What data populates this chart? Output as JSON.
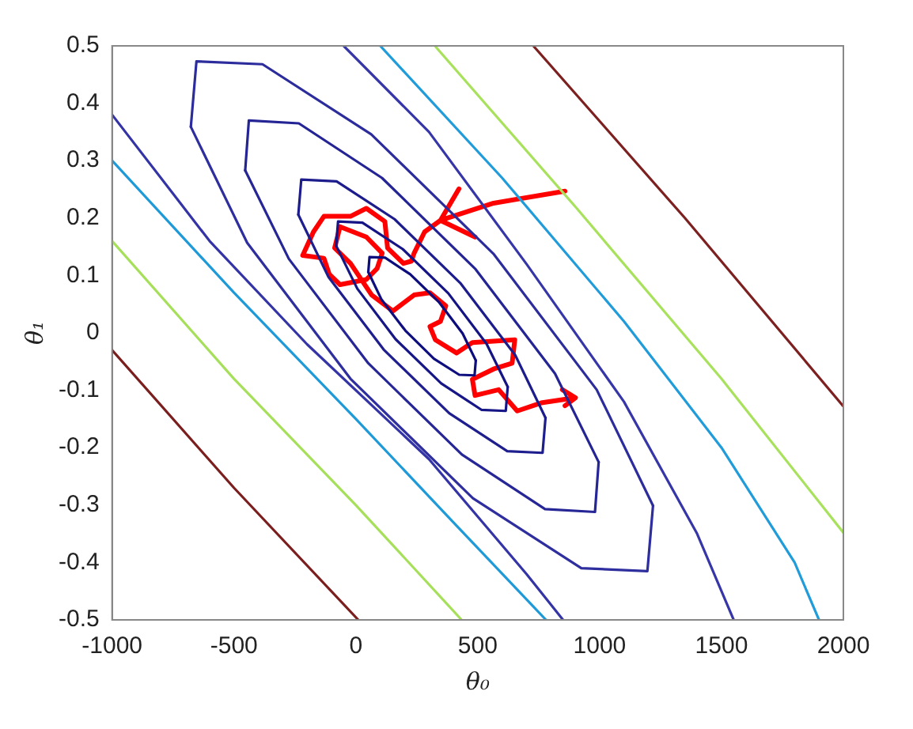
{
  "chart_data": {
    "type": "line",
    "xlabel": "θ₀",
    "ylabel": "θ₁",
    "xlim": [
      -1000,
      2000
    ],
    "xticks": [
      -1000,
      -500,
      0,
      500,
      1000,
      1500,
      2000
    ],
    "ylim": [
      -0.5,
      0.5
    ],
    "yticks": [
      -0.5,
      -0.4,
      -0.3,
      -0.2,
      -0.1,
      0,
      0.1,
      0.2,
      0.3,
      0.4,
      0.5
    ],
    "series": [
      {
        "color": "#0c0c7c",
        "x": [
          492,
          438,
          340,
          223,
          120,
          56,
          51
        ],
        "values": [
          -0.048,
          -0.001,
          0.054,
          0.102,
          0.131,
          0.132,
          0.106
        ]
      },
      {
        "color": "#0e0e7e",
        "x": [
          51,
          104,
          203,
          320,
          424,
          487,
          492
        ],
        "values": [
          0.106,
          0.059,
          0.004,
          -0.045,
          -0.073,
          -0.074,
          -0.048
        ]
      },
      {
        "color": "#141484",
        "x": [
          623,
          536,
          379,
          192,
          27,
          -73,
          -81
        ],
        "values": [
          -0.094,
          -0.019,
          0.069,
          0.146,
          0.192,
          0.194,
          0.152
        ]
      },
      {
        "color": "#161686",
        "x": [
          -81,
          6,
          163,
          350,
          515,
          615,
          623
        ],
        "values": [
          0.152,
          0.077,
          -0.011,
          -0.088,
          -0.134,
          -0.136,
          -0.094
        ]
      },
      {
        "color": "#1c1c8c",
        "x": [
          778,
          654,
          428,
          159,
          -79,
          -224,
          -236
        ],
        "values": [
          -0.148,
          -0.039,
          0.087,
          0.198,
          0.264,
          0.267,
          0.206
        ]
      },
      {
        "color": "#1e1e8e",
        "x": [
          -236,
          -112,
          114,
          383,
          621,
          766,
          778
        ],
        "values": [
          0.206,
          0.097,
          -0.029,
          -0.14,
          -0.206,
          -0.209,
          -0.148
        ]
      },
      {
        "color": "#242494",
        "x": [
          996,
          817,
          491,
          107,
          -234,
          -439,
          -454
        ],
        "values": [
          -0.225,
          -0.071,
          0.111,
          0.27,
          0.365,
          0.37,
          0.283
        ]
      },
      {
        "color": "#262696",
        "x": [
          -454,
          -275,
          51,
          435,
          776,
          981,
          996
        ],
        "values": [
          0.283,
          0.129,
          -0.053,
          -0.212,
          -0.307,
          -0.312,
          -0.225
        ]
      },
      {
        "color": "#2c2c9c",
        "x": [
          1219,
          988,
          564,
          63,
          -383,
          -654,
          -677
        ],
        "values": [
          -0.301,
          -0.099,
          0.138,
          0.346,
          0.468,
          0.473,
          0.359
        ]
      },
      {
        "color": "#2e2e9e",
        "x": [
          -677,
          -446,
          -22,
          480,
          925,
          1196,
          1219
        ],
        "values": [
          0.359,
          0.157,
          -0.08,
          -0.288,
          -0.41,
          -0.415,
          -0.301
        ]
      },
      {
        "color": "#3434a6",
        "x": [
          -1000,
          -600,
          -200,
          300,
          700,
          850
        ],
        "values": [
          0.38,
          0.16,
          -0.02,
          -0.22,
          -0.42,
          -0.5
        ]
      },
      {
        "color": "#3636a8",
        "x": [
          -50,
          300,
          700,
          1100,
          1400,
          1550
        ],
        "values": [
          0.5,
          0.35,
          0.12,
          -0.12,
          -0.35,
          -0.5
        ]
      },
      {
        "color": "#1e9ad8",
        "x": [
          -1000,
          -500,
          0,
          400,
          780
        ],
        "values": [
          0.3,
          0.07,
          -0.15,
          -0.33,
          -0.5
        ]
      },
      {
        "color": "#209cda",
        "x": [
          100,
          600,
          1100,
          1500,
          1800,
          1900
        ],
        "values": [
          0.5,
          0.27,
          0.02,
          -0.2,
          -0.4,
          -0.5
        ]
      },
      {
        "color": "#a6e05a",
        "x": [
          -1000,
          -500,
          0,
          434
        ],
        "values": [
          0.16,
          -0.08,
          -0.3,
          -0.5
        ]
      },
      {
        "color": "#a8e25c",
        "x": [
          324,
          900,
          1500,
          2000
        ],
        "values": [
          0.5,
          0.22,
          -0.08,
          -0.348
        ]
      },
      {
        "color": "#7a1e1e",
        "x": [
          -1000,
          -500,
          10
        ],
        "values": [
          -0.03,
          -0.27,
          -0.5
        ]
      },
      {
        "color": "#7c2020",
        "x": [
          728,
          1350,
          2000
        ],
        "values": [
          0.5,
          0.2,
          -0.128
        ]
      },
      {
        "color": "#ff0000",
        "x": [
          858,
          565,
          347,
          423,
          347,
          489,
          347,
          282,
          239,
          228,
          195,
          130,
          119,
          43,
          -22,
          -131,
          -174,
          -218,
          -131,
          -109,
          -65,
          43,
          87,
          108,
          43,
          -65,
          -87,
          -22,
          65,
          152,
          239,
          304,
          369,
          347,
          304,
          326,
          413,
          478,
          652,
          641,
          565,
          478,
          489,
          586,
          662,
          760,
          901,
          847,
          901,
          858
        ],
        "values": [
          0.247,
          0.226,
          0.196,
          0.251,
          0.196,
          0.167,
          0.196,
          0.176,
          0.139,
          0.125,
          0.121,
          0.148,
          0.194,
          0.217,
          0.203,
          0.203,
          0.176,
          0.135,
          0.13,
          0.102,
          0.084,
          0.093,
          0.112,
          0.139,
          0.167,
          0.185,
          0.148,
          0.121,
          0.066,
          0.038,
          0.066,
          0.07,
          0.047,
          0.02,
          0.011,
          -0.012,
          -0.035,
          -0.017,
          -0.012,
          -0.053,
          -0.063,
          -0.081,
          -0.109,
          -0.099,
          -0.136,
          -0.122,
          -0.113,
          -0.099,
          -0.113,
          -0.127
        ]
      }
    ]
  }
}
